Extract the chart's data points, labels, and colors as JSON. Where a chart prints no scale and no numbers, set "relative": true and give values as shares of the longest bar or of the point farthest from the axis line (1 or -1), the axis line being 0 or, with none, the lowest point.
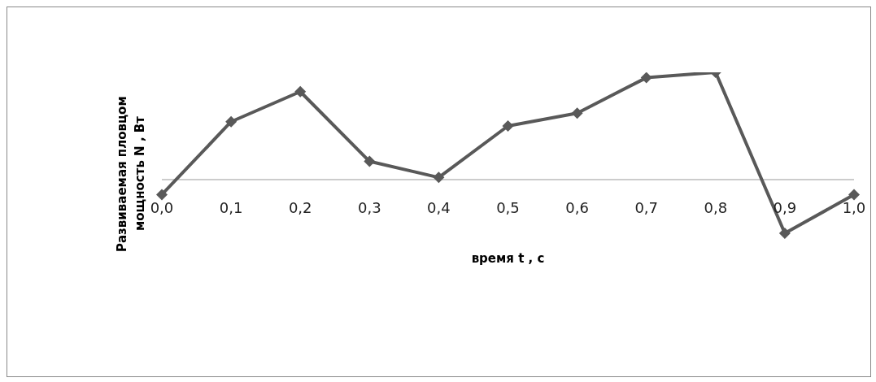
{
  "chart_data": {
    "type": "line",
    "xlabel": "время t , с",
    "ylabel": "Развиваемая пловцом мощность N , Вт",
    "categories": [
      "0,0",
      "0,1",
      "0,2",
      "0,3",
      "0,4",
      "0,5",
      "0,6",
      "0,7",
      "0,8",
      "0,9",
      "1,0"
    ],
    "series": [
      {
        "color": "#595959",
        "values": [
          -0.14,
          0.54,
          0.82,
          0.17,
          0.02,
          0.5,
          0.62,
          0.95,
          1,
          -0.5,
          -0.14
        ]
      }
    ],
    "relative": true,
    "marker": "diamond",
    "line_style": "solid"
  }
}
